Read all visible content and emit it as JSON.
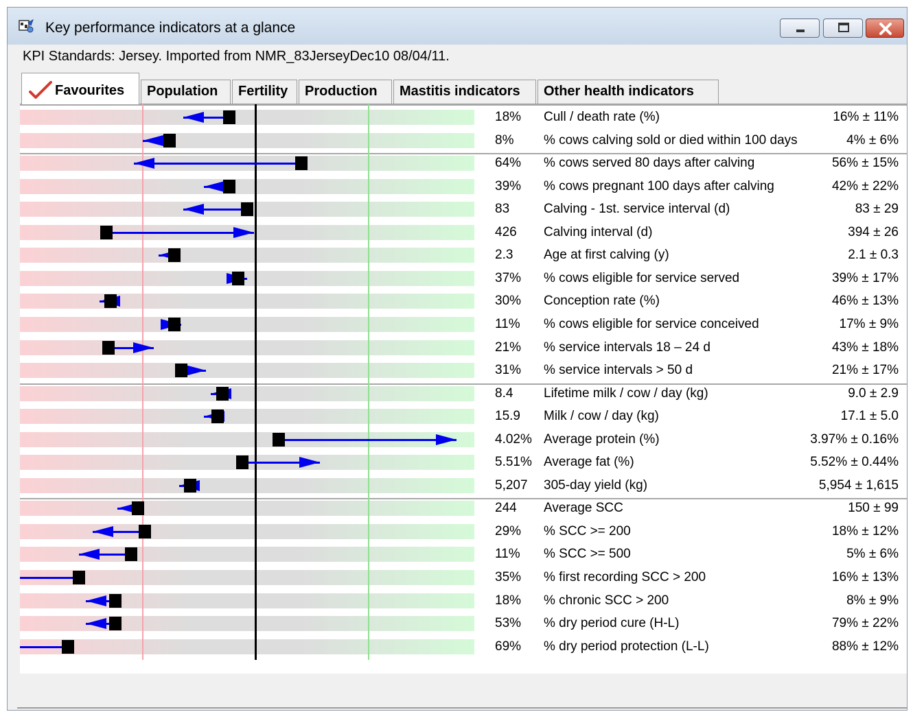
{
  "window": {
    "title": "Key performance indicators at a glance"
  },
  "subtitle": "KPI Standards: Jersey. Imported from NMR_83JerseyDec10 08/04/11.",
  "tabs": [
    {
      "label": "Favourites",
      "active": true
    },
    {
      "label": "Population"
    },
    {
      "label": "Fertility"
    },
    {
      "label": "Production"
    },
    {
      "label": "Mastitis indicators"
    },
    {
      "label": "Other health indicators"
    }
  ],
  "colors": {
    "arrow": "#0000ee",
    "bad": "#f5a3ad",
    "good": "#90e090",
    "neutral": "#000000"
  },
  "rows": [
    {
      "value": "18%",
      "label": "Cull / death rate (%)",
      "standard": "16% ± 11%",
      "marker": 0.46,
      "arrow": 0.36
    },
    {
      "value": "8%",
      "label": "% cows calving sold or died within 100 days",
      "standard": "4% ± 6%",
      "marker": 0.33,
      "arrow": 0.27
    },
    {
      "value": "64%",
      "label": "% cows served 80 days after calving",
      "standard": "56% ± 15%",
      "marker": 0.62,
      "arrow": 0.25
    },
    {
      "value": "39%",
      "label": "% cows pregnant 100 days after calving",
      "standard": "42% ± 22%",
      "marker": 0.46,
      "arrow": 0.405
    },
    {
      "value": "83",
      "label": "Calving - 1st. service interval (d)",
      "standard": "83 ± 29",
      "marker": 0.5,
      "arrow": 0.36
    },
    {
      "value": "426",
      "label": "Calving interval (d)",
      "standard": "394 ± 26",
      "marker": 0.19,
      "arrow": 0.515
    },
    {
      "value": "2.3",
      "label": "Age at first calving (y)",
      "standard": "2.1 ± 0.3",
      "marker": 0.34,
      "arrow": 0.305
    },
    {
      "value": "37%",
      "label": "% cows eligible for service served",
      "standard": "39% ± 17%",
      "marker": 0.48,
      "arrow": 0.5
    },
    {
      "value": "30%",
      "label": "Conception rate (%)",
      "standard": "46% ± 13%",
      "marker": 0.2,
      "arrow": 0.175
    },
    {
      "value": "11%",
      "label": "% cows eligible for service conceived",
      "standard": "17% ± 9%",
      "marker": 0.34,
      "arrow": 0.355
    },
    {
      "value": "21%",
      "label": "% service intervals 18 – 24 d",
      "standard": "43% ± 18%",
      "marker": 0.195,
      "arrow": 0.295
    },
    {
      "value": "31%",
      "label": "% service intervals > 50 d",
      "standard": "21% ± 17%",
      "marker": 0.355,
      "arrow": 0.41
    },
    {
      "value": "8.4",
      "label": "Lifetime milk / cow / day (kg)",
      "standard": "9.0 ± 2.9",
      "marker": 0.445,
      "arrow": 0.42
    },
    {
      "value": "15.9",
      "label": "Milk / cow / day (kg)",
      "standard": "17.1 ± 5.0",
      "marker": 0.435,
      "arrow": 0.405
    },
    {
      "value": "4.02%",
      "label": "Average protein (%)",
      "standard": "3.97% ± 0.16%",
      "marker": 0.57,
      "arrow": 0.96
    },
    {
      "value": "5.51%",
      "label": "Average fat (%)",
      "standard": "5.52% ± 0.44%",
      "marker": 0.49,
      "arrow": 0.66
    },
    {
      "value": "5,207",
      "label": "305-day yield (kg)",
      "standard": "5,954 ± 1,615",
      "marker": 0.375,
      "arrow": 0.35
    },
    {
      "value": "244",
      "label": "Average SCC",
      "standard": "150 ± 99",
      "marker": 0.26,
      "arrow": 0.215
    },
    {
      "value": "29%",
      "label": "% SCC >= 200",
      "standard": "18% ± 12%",
      "marker": 0.275,
      "arrow": 0.16
    },
    {
      "value": "11%",
      "label": "% SCC >= 500",
      "standard": "5% ± 6%",
      "marker": 0.245,
      "arrow": 0.13
    },
    {
      "value": "35%",
      "label": "% first recording SCC > 200",
      "standard": "16% ± 13%",
      "marker": 0.13,
      "arrow": 0.0
    },
    {
      "value": "18%",
      "label": "% chronic SCC > 200",
      "standard": "8% ± 9%",
      "marker": 0.21,
      "arrow": 0.145
    },
    {
      "value": "53%",
      "label": "% dry period cure (H-L)",
      "standard": "79% ± 22%",
      "marker": 0.21,
      "arrow": 0.145
    },
    {
      "value": "69%",
      "label": "% dry period protection (L-L)",
      "standard": "88% ± 12%",
      "marker": 0.105,
      "arrow": 0.0
    }
  ]
}
